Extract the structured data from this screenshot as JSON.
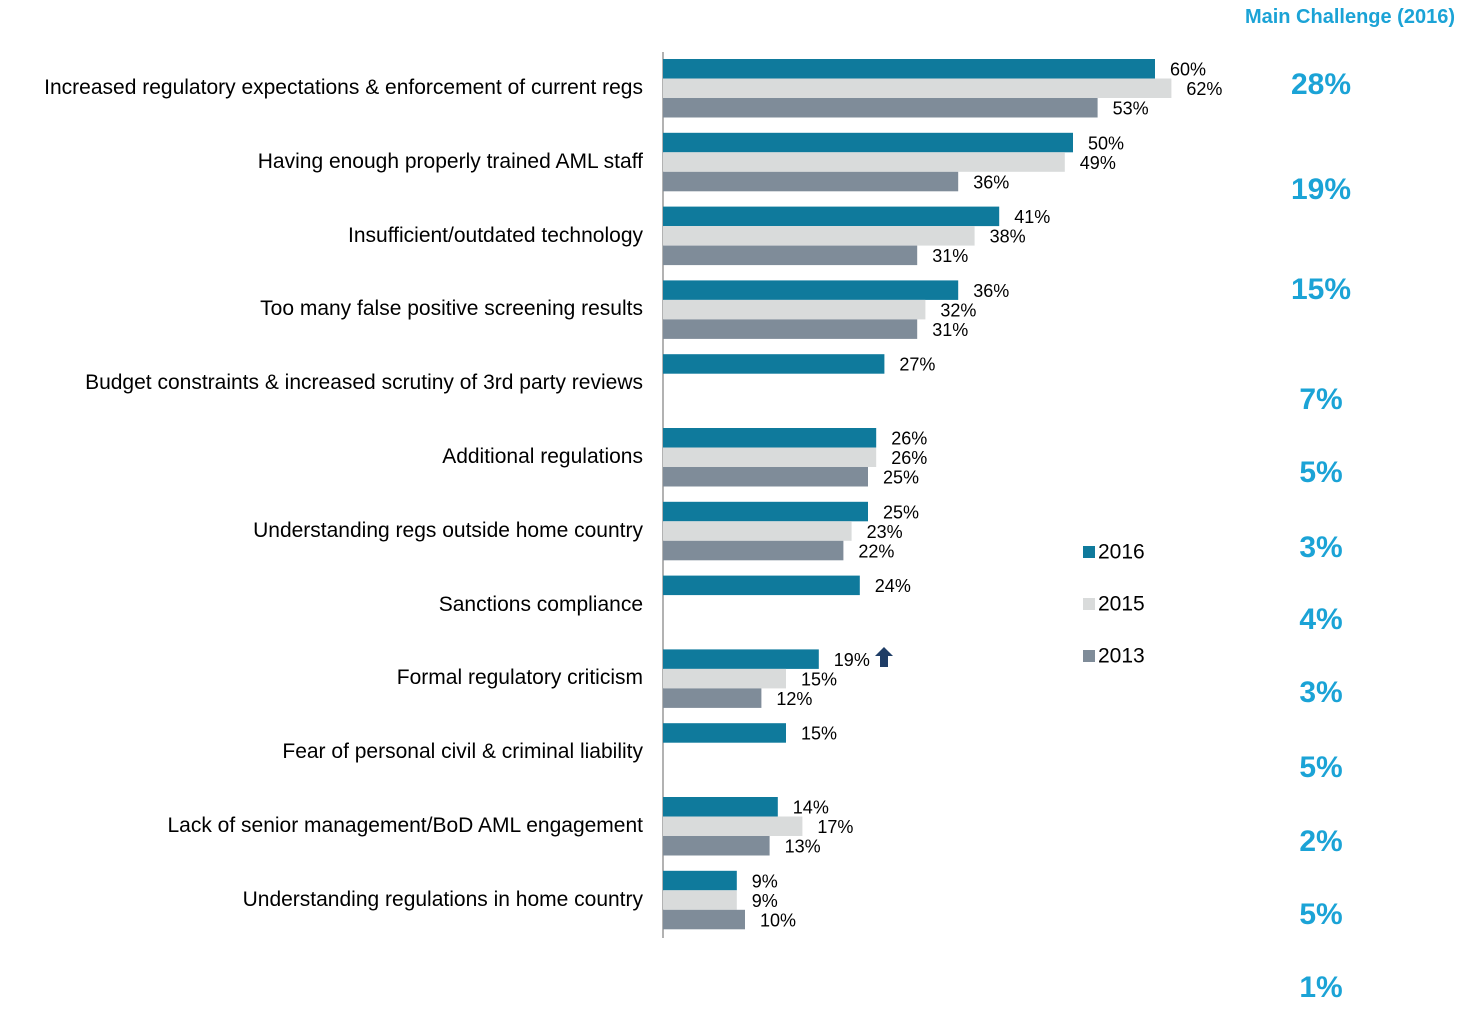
{
  "chart_data": {
    "type": "bar",
    "orientation": "horizontal",
    "categories": [
      "Increased regulatory expectations & enforcement of current regs",
      "Having enough properly trained AML staff",
      "Insufficient/outdated technology",
      "Too many false positive screening results",
      "Budget constraints & increased scrutiny of 3rd party reviews",
      "Additional regulations",
      "Understanding regs outside home country",
      "Sanctions compliance",
      "Formal regulatory criticism",
      "Fear of personal civil & criminal liability",
      "Lack of senior management/BoD AML engagement",
      "Understanding regulations in home country"
    ],
    "series": [
      {
        "name": "2016",
        "color": "#0f7a9c",
        "values": [
          60,
          50,
          41,
          36,
          27,
          26,
          25,
          24,
          19,
          15,
          14,
          9
        ],
        "value_labels": [
          "60%",
          "50%",
          "41%",
          "36%",
          "27%",
          "26%",
          "25%",
          "24%",
          "19%",
          "15%",
          "14%",
          "9%"
        ]
      },
      {
        "name": "2015",
        "color": "#d9dbdb",
        "values": [
          62,
          49,
          38,
          32,
          null,
          26,
          23,
          null,
          15,
          null,
          17,
          9
        ],
        "value_labels": [
          "62%",
          "49%",
          "38%",
          "32%",
          null,
          "26%",
          "23%",
          null,
          "15%",
          null,
          "17%",
          "9%"
        ]
      },
      {
        "name": "2013",
        "color": "#7f8c99",
        "values": [
          53,
          36,
          31,
          31,
          null,
          25,
          22,
          null,
          12,
          null,
          13,
          10
        ],
        "value_labels": [
          "53%",
          "36%",
          "31%",
          "31%",
          null,
          "25%",
          "22%",
          null,
          "12%",
          null,
          "13%",
          "10%"
        ]
      }
    ],
    "xlim": [
      0,
      70
    ],
    "legend": "right",
    "main_challenge": {
      "title": "Main Challenge (2016)",
      "color": "#1ba3d6",
      "values": [
        28,
        19,
        15,
        7,
        5,
        3,
        4,
        3,
        5,
        2,
        5,
        1
      ],
      "value_labels": [
        "28%",
        "19%",
        "15%",
        "7%",
        "5%",
        "3%",
        "4%",
        "3%",
        "5%",
        "2%",
        "5%",
        "1%"
      ]
    }
  }
}
